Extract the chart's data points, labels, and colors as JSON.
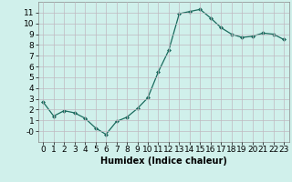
{
  "x": [
    0,
    1,
    2,
    3,
    4,
    5,
    6,
    7,
    8,
    9,
    10,
    11,
    12,
    13,
    14,
    15,
    16,
    17,
    18,
    19,
    20,
    21,
    22,
    23
  ],
  "y": [
    2.7,
    1.4,
    1.9,
    1.7,
    1.2,
    0.3,
    -0.3,
    0.9,
    1.3,
    2.1,
    3.1,
    5.5,
    7.5,
    10.9,
    11.1,
    11.3,
    10.5,
    9.6,
    9.0,
    8.7,
    8.8,
    9.1,
    9.0,
    8.5
  ],
  "line_color": "#1a6b5e",
  "marker": "D",
  "marker_size": 2,
  "linewidth": 0.9,
  "xlabel": "Humidex (Indice chaleur)",
  "xlabel_fontsize": 7,
  "ylim": [
    -1,
    12
  ],
  "xlim": [
    -0.5,
    23.5
  ],
  "yticks": [
    0,
    1,
    2,
    3,
    4,
    5,
    6,
    7,
    8,
    9,
    10,
    11
  ],
  "ytick_labels": [
    "-0",
    "1",
    "2",
    "3",
    "4",
    "5",
    "6",
    "7",
    "8",
    "9",
    "10",
    "11"
  ],
  "xticks": [
    0,
    1,
    2,
    3,
    4,
    5,
    6,
    7,
    8,
    9,
    10,
    11,
    12,
    13,
    14,
    15,
    16,
    17,
    18,
    19,
    20,
    21,
    22,
    23
  ],
  "xtick_labels": [
    "0",
    "1",
    "2",
    "3",
    "4",
    "5",
    "6",
    "7",
    "8",
    "9",
    "10",
    "11",
    "12",
    "13",
    "14",
    "15",
    "16",
    "17",
    "18",
    "19",
    "20",
    "21",
    "22",
    "23"
  ],
  "background_color": "#d0f0eb",
  "grid_color": "#c0b8c0",
  "tick_fontsize": 6.5,
  "spine_color": "#888888"
}
